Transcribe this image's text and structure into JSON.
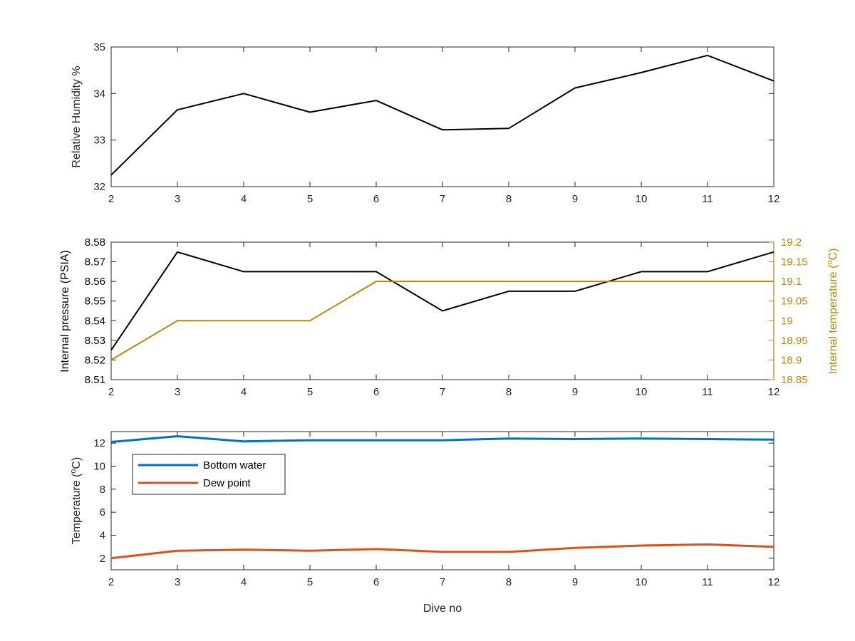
{
  "figure": {
    "xlabel": "Dive no",
    "colors": {
      "axis": "#262626",
      "black_series": "#000000",
      "gold_series": "#B8860B",
      "blue_series": "#0072BD",
      "orange_series": "#D95319"
    }
  },
  "chart_data": [
    {
      "type": "line",
      "title": "",
      "xlabel": "",
      "ylabel": "Relative Humidity %",
      "xlim": [
        2,
        12
      ],
      "ylim": [
        32,
        35
      ],
      "xticks": [
        "2",
        "3",
        "4",
        "5",
        "6",
        "7",
        "8",
        "9",
        "10",
        "11",
        "12"
      ],
      "yticks": [
        "32",
        "33",
        "34",
        "35"
      ],
      "x": [
        2,
        3,
        4,
        5,
        6,
        7,
        8,
        9,
        10,
        11,
        12
      ],
      "series": [
        {
          "values": [
            32.25,
            33.65,
            34.0,
            33.6,
            33.85,
            33.22,
            33.25,
            34.12,
            34.45,
            34.82,
            34.27
          ],
          "color": "#000000"
        }
      ]
    },
    {
      "type": "line",
      "title": "",
      "xlabel": "",
      "ylabel": "Internal pressure (PSIA)",
      "ylabel_right": "Internal temperature (°C)",
      "xlim": [
        2,
        12
      ],
      "ylim": [
        8.51,
        8.58
      ],
      "ylim_right": [
        18.85,
        19.2
      ],
      "xticks": [
        "2",
        "3",
        "4",
        "5",
        "6",
        "7",
        "8",
        "9",
        "10",
        "11",
        "12"
      ],
      "yticks": [
        "8.51",
        "8.52",
        "8.53",
        "8.54",
        "8.55",
        "8.56",
        "8.57",
        "8.58"
      ],
      "yticks_right": [
        "18.85",
        "18.9",
        "18.95",
        "19",
        "19.05",
        "19.1",
        "19.15",
        "19.2"
      ],
      "x": [
        2,
        3,
        4,
        5,
        6,
        7,
        8,
        9,
        10,
        11,
        12
      ],
      "series": [
        {
          "axis": "left",
          "values": [
            8.525,
            8.575,
            8.565,
            8.565,
            8.565,
            8.545,
            8.555,
            8.555,
            8.565,
            8.565,
            8.575
          ],
          "color": "#000000"
        },
        {
          "axis": "right",
          "values": [
            18.9,
            19.0,
            19.0,
            19.0,
            19.1,
            19.1,
            19.1,
            19.1,
            19.1,
            19.1,
            19.1
          ],
          "color": "#B8860B"
        }
      ]
    },
    {
      "type": "line",
      "title": "",
      "xlabel": "Dive no",
      "ylabel": "Temperature (°C)",
      "xlim": [
        2,
        12
      ],
      "ylim": [
        1,
        13
      ],
      "xticks": [
        "2",
        "3",
        "4",
        "5",
        "6",
        "7",
        "8",
        "9",
        "10",
        "11",
        "12"
      ],
      "yticks": [
        "2",
        "4",
        "6",
        "8",
        "10",
        "12"
      ],
      "ytick_values": [
        2,
        4,
        6,
        8,
        10,
        12
      ],
      "x": [
        2,
        3,
        4,
        5,
        6,
        7,
        8,
        9,
        10,
        11,
        12
      ],
      "legend": "top-left",
      "series": [
        {
          "name": "Bottom water",
          "values": [
            12.1,
            12.6,
            12.15,
            12.25,
            12.25,
            12.25,
            12.4,
            12.35,
            12.4,
            12.35,
            12.3
          ],
          "color": "#0072BD"
        },
        {
          "name": "Dew point",
          "values": [
            2.0,
            2.65,
            2.75,
            2.65,
            2.8,
            2.55,
            2.55,
            2.9,
            3.1,
            3.2,
            3.0
          ],
          "color": "#D95319"
        }
      ]
    }
  ]
}
